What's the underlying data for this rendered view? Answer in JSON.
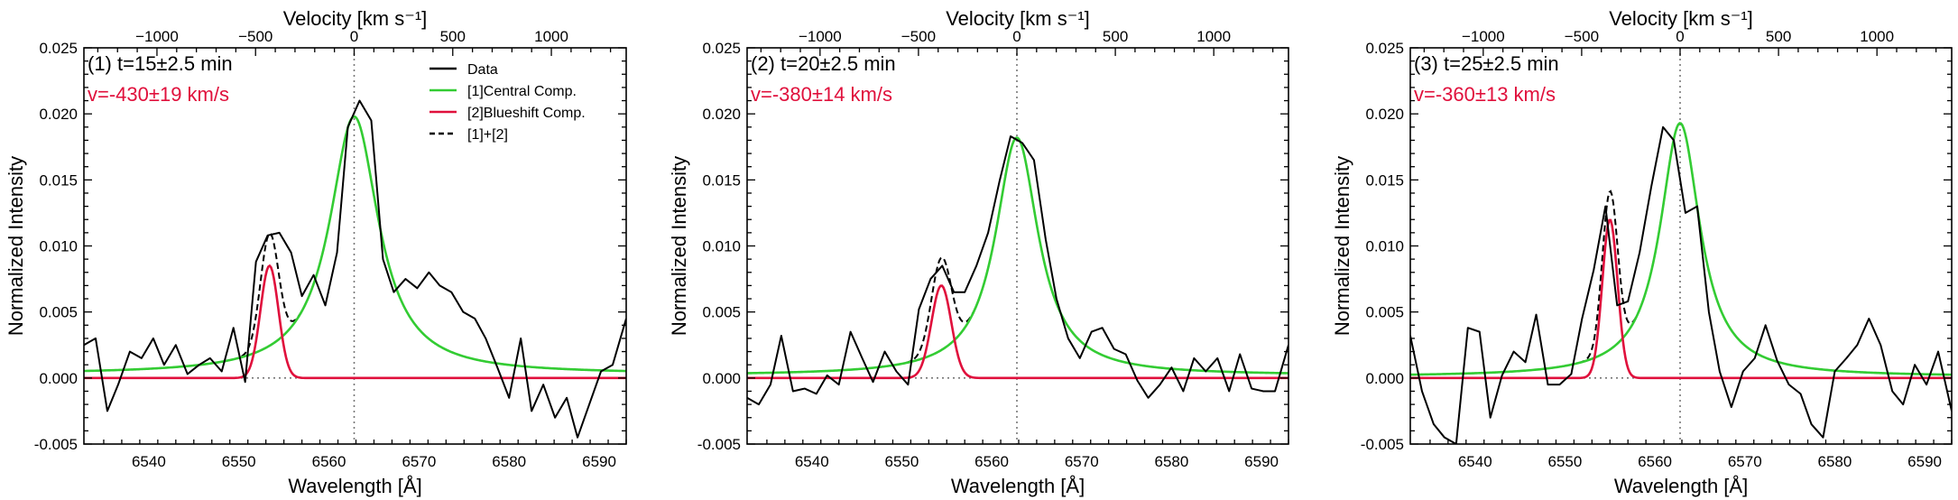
{
  "colors": {
    "data": "#000000",
    "central": "#33cc33",
    "blueshift": "#e0103c",
    "sum": "#000000",
    "velocity_text": "#e0103c"
  },
  "shared": {
    "xlabel": "Wavelength [Å]",
    "ylabel": "Normalized Intensity",
    "top_xlabel": "Velocity [km s⁻¹]",
    "xlim": [
      6532.8,
      6593.0
    ],
    "ylim": [
      -0.005,
      0.025
    ],
    "line_center": 6562.8,
    "x_ticks": [
      6540,
      6550,
      6560,
      6570,
      6580,
      6590
    ],
    "x_tick_labels": [
      "6540",
      "6550",
      "6560",
      "6570",
      "6580",
      "6590"
    ],
    "y_ticks": [
      -0.005,
      0.0,
      0.005,
      0.01,
      0.015,
      0.02,
      0.025
    ],
    "y_tick_labels": [
      "-0.005",
      "0.000",
      "0.005",
      "0.010",
      "0.015",
      "0.020",
      "0.025"
    ],
    "vel_ticks": [
      -1000,
      -500,
      0,
      500,
      1000
    ],
    "vel_tick_labels": [
      "−1000",
      "−500",
      "0",
      "500",
      "1000"
    ]
  },
  "legend": {
    "items": [
      {
        "label": "Data",
        "key": "data",
        "dash": false
      },
      {
        "label": "[1]Central Comp.",
        "key": "central",
        "dash": false
      },
      {
        "label": "[2]Blueshift Comp.",
        "key": "blueshift",
        "dash": false
      },
      {
        "label": "[1]+[2]",
        "key": "sum",
        "dash": true
      }
    ]
  },
  "chart_data": [
    {
      "type": "line",
      "title": "(1) t=15±2.5 min",
      "velocity_text": "v=-430±19 km/s",
      "central": {
        "amp": 0.0195,
        "center": 6562.8,
        "gamma": 3.3,
        "base": 0.0003
      },
      "blueshift": {
        "amp": 0.0085,
        "center": 6553.4,
        "sigma": 1.0
      },
      "data": {
        "x": [
          6532.8,
          6534.1,
          6535.4,
          6536.6,
          6537.9,
          6539.2,
          6540.5,
          6541.7,
          6543.0,
          6544.3,
          6545.6,
          6546.8,
          6548.1,
          6549.4,
          6550.7,
          6551.9,
          6553.2,
          6554.5,
          6555.8,
          6557.0,
          6558.3,
          6559.6,
          6560.9,
          6562.1,
          6563.4,
          6564.7,
          6566.0,
          6567.2,
          6568.5,
          6569.8,
          6571.1,
          6572.3,
          6573.6,
          6574.9,
          6576.2,
          6577.4,
          6578.7,
          6580.0,
          6581.3,
          6582.5,
          6583.8,
          6585.1,
          6586.4,
          6587.6,
          6588.9,
          6590.2,
          6591.5,
          6593.0
        ],
        "y": [
          0.0025,
          0.003,
          -0.0025,
          -0.0005,
          0.002,
          0.0015,
          0.003,
          0.001,
          0.0025,
          0.0003,
          0.001,
          0.0015,
          0.0005,
          0.0038,
          -0.0003,
          0.0088,
          0.0108,
          0.011,
          0.0095,
          0.0062,
          0.0078,
          0.0055,
          0.0095,
          0.019,
          0.021,
          0.0195,
          0.009,
          0.0065,
          0.0075,
          0.0068,
          0.008,
          0.007,
          0.0065,
          0.005,
          0.0045,
          0.003,
          0.0008,
          -0.0015,
          0.003,
          -0.0025,
          -0.0005,
          -0.003,
          -0.0015,
          -0.0045,
          -0.002,
          0.0005,
          0.001,
          0.0045
        ]
      }
    },
    {
      "type": "line",
      "title": "(2) t=20±2.5 min",
      "velocity_text": "v=-380±14 km/s",
      "central": {
        "amp": 0.018,
        "center": 6562.8,
        "gamma": 2.9,
        "base": 0.0002
      },
      "blueshift": {
        "amp": 0.007,
        "center": 6554.4,
        "sigma": 1.1
      },
      "data": {
        "x": [
          6532.8,
          6534.1,
          6535.4,
          6536.6,
          6537.9,
          6539.2,
          6540.5,
          6541.7,
          6543.0,
          6544.3,
          6545.6,
          6546.8,
          6548.1,
          6549.4,
          6550.7,
          6551.9,
          6553.2,
          6554.5,
          6555.8,
          6557.0,
          6558.3,
          6559.6,
          6560.9,
          6562.1,
          6563.4,
          6564.7,
          6566.0,
          6567.2,
          6568.5,
          6569.8,
          6571.1,
          6572.3,
          6573.6,
          6574.9,
          6576.2,
          6577.4,
          6578.7,
          6580.0,
          6581.3,
          6582.5,
          6583.8,
          6585.1,
          6586.4,
          6587.6,
          6588.9,
          6590.2,
          6591.5,
          6593.0
        ],
        "y": [
          -0.0015,
          -0.002,
          -0.0005,
          0.0032,
          -0.001,
          -0.0008,
          -0.0012,
          0.0002,
          -0.0005,
          0.0035,
          0.0015,
          -0.0003,
          0.002,
          0.0005,
          -0.0005,
          0.0052,
          0.0075,
          0.0085,
          0.0065,
          0.0065,
          0.0085,
          0.011,
          0.015,
          0.0183,
          0.0178,
          0.0165,
          0.0105,
          0.006,
          0.003,
          0.0015,
          0.0035,
          0.0038,
          0.0022,
          0.0018,
          -0.0002,
          -0.0015,
          -0.0005,
          0.0008,
          -0.001,
          0.0015,
          0.0005,
          0.0015,
          -0.001,
          0.0018,
          -0.0008,
          -0.001,
          -0.001,
          0.0025
        ]
      }
    },
    {
      "type": "line",
      "title": "(3) t=25±2.5 min",
      "velocity_text": "v=-360±13 km/s",
      "central": {
        "amp": 0.0192,
        "center": 6562.8,
        "gamma": 2.7,
        "base": 0.0001
      },
      "blueshift": {
        "amp": 0.012,
        "center": 6555.0,
        "sigma": 0.85
      },
      "data": {
        "x": [
          6532.8,
          6534.1,
          6535.4,
          6536.6,
          6537.9,
          6539.2,
          6540.5,
          6541.7,
          6543.0,
          6544.3,
          6545.6,
          6546.8,
          6548.1,
          6549.4,
          6550.7,
          6551.9,
          6553.2,
          6554.5,
          6555.8,
          6557.0,
          6558.3,
          6559.6,
          6560.9,
          6562.1,
          6563.4,
          6564.7,
          6566.0,
          6567.2,
          6568.5,
          6569.8,
          6571.1,
          6572.3,
          6573.6,
          6574.9,
          6576.2,
          6577.4,
          6578.7,
          6580.0,
          6581.3,
          6582.5,
          6583.8,
          6585.1,
          6586.4,
          6587.6,
          6588.9,
          6590.2,
          6591.5,
          6593.0
        ],
        "y": [
          0.0032,
          -0.001,
          -0.0035,
          -0.0045,
          -0.005,
          0.0038,
          0.0035,
          -0.003,
          0.0002,
          0.002,
          0.0012,
          0.0048,
          -0.0005,
          -0.0005,
          0.0003,
          0.0045,
          0.0082,
          0.013,
          0.0055,
          0.0058,
          0.0095,
          0.0145,
          0.019,
          0.018,
          0.0125,
          0.013,
          0.005,
          0.0005,
          -0.0022,
          0.0005,
          0.0015,
          0.004,
          0.0013,
          -0.0005,
          -0.0012,
          -0.0035,
          -0.0045,
          0.0005,
          0.0015,
          0.0025,
          0.0045,
          0.0025,
          -0.001,
          -0.002,
          0.001,
          -0.0005,
          0.002,
          -0.0025
        ]
      }
    }
  ]
}
